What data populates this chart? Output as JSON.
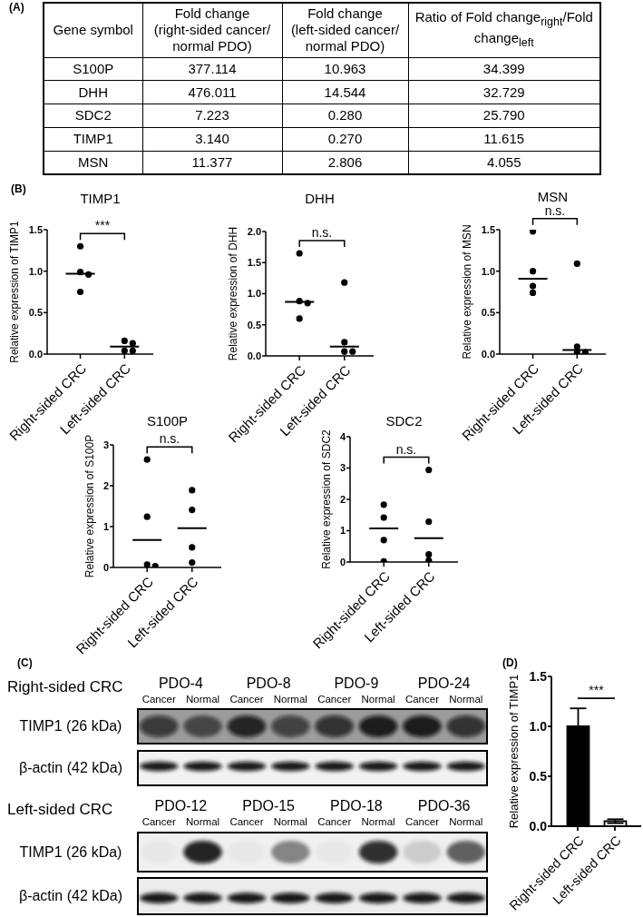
{
  "chart_data": [
    {
      "type": "other",
      "annotations": [
        "(A)"
      ],
      "ylabel": "Gene symbol",
      "categories": [
        "Fold change (right-sided cancer/ normal PDO)",
        "Fold change (left-sided cancer/ normal PDO)",
        "Ratio of Fold change$_{right}$/Fold change$_{left}$"
      ],
      "y_categories": [
        "S100P",
        "DHH",
        "SDC2",
        "TIMP1",
        "MSN"
      ],
      "cell_labels": [
        [
          "377.114",
          "10.963",
          "34.399"
        ],
        [
          "476.011",
          "14.544",
          "32.729"
        ],
        [
          "7.223",
          "0.280",
          "25.790"
        ],
        [
          "3.140",
          "0.270",
          "11.615"
        ],
        [
          "11.377",
          "2.806",
          "4.055"
        ]
      ]
    },
    {
      "type": "scatter",
      "title": "TIMP1",
      "ylabel": "Relative expression of TIMP1",
      "annotations": [
        "(B)",
        "***"
      ],
      "categories": [
        "Right-sided CRC",
        "Left-sided CRC"
      ],
      "ylim": [
        0,
        1.5
      ],
      "yticks": [
        {
          "value": 0,
          "label": "0.0"
        },
        0.5,
        {
          "value": 1,
          "label": "1.0"
        },
        1.5
      ],
      "marker": "circle",
      "series": [
        {
          "color": "#000000",
          "x": [
            "Right-sided CRC",
            "Right-sided CRC",
            "Right-sided CRC",
            "Right-sided CRC",
            "Left-sided CRC",
            "Left-sided CRC",
            "Left-sided CRC",
            "Left-sided CRC"
          ],
          "values": [
            1.3,
            0.99,
            0.96,
            0.75,
            0.16,
            0.13,
            0.04,
            0.04
          ]
        },
        {
          "type": "box",
          "color": "#000000",
          "boxes": [
            {
              "low": 0.97,
              "q1": 0.97,
              "median": 0.97,
              "q3": 0.97,
              "high": 0.97
            },
            {
              "low": 0.09,
              "q1": 0.09,
              "median": 0.09,
              "q3": 0.09,
              "high": 0.09
            }
          ]
        }
      ]
    },
    {
      "type": "scatter",
      "title": "DHH",
      "ylabel": "Relative expression of DHH",
      "annotations": [
        "n.s."
      ],
      "categories": [
        "Right-sided CRC",
        "Left-sided CRC"
      ],
      "ylim": [
        0,
        2
      ],
      "yticks": [
        {
          "value": 0,
          "label": "0.0"
        },
        0.5,
        {
          "value": 1,
          "label": "1.0"
        },
        1.5,
        {
          "value": 2,
          "label": "2.0"
        }
      ],
      "marker": "circle",
      "series": [
        {
          "color": "#000000",
          "x": [
            "Right-sided CRC",
            "Right-sided CRC",
            "Right-sided CRC",
            "Right-sided CRC",
            "Left-sided CRC",
            "Left-sided CRC",
            "Left-sided CRC",
            "Left-sided CRC"
          ],
          "values": [
            1.65,
            0.88,
            0.85,
            0.6,
            1.18,
            0.22,
            0.07,
            0.07
          ]
        },
        {
          "type": "box",
          "color": "#000000",
          "boxes": [
            {
              "low": 0.87,
              "q1": 0.87,
              "median": 0.87,
              "q3": 0.87,
              "high": 0.87
            },
            {
              "low": 0.15,
              "q1": 0.15,
              "median": 0.15,
              "q3": 0.15,
              "high": 0.15
            }
          ]
        }
      ]
    },
    {
      "type": "scatter",
      "title": "MSN",
      "ylabel": "Relative expression of MSN",
      "annotations": [
        "n.s."
      ],
      "categories": [
        "Right-sided CRC",
        "Left-sided CRC"
      ],
      "ylim": [
        0,
        1.5
      ],
      "yticks": [
        {
          "value": 0,
          "label": "0.0"
        },
        0.5,
        {
          "value": 1,
          "label": "1.0"
        },
        1.5
      ],
      "marker": "circle",
      "series": [
        {
          "color": "#000000",
          "x": [
            "Right-sided CRC",
            "Right-sided CRC",
            "Right-sided CRC",
            "Right-sided CRC",
            "Left-sided CRC",
            "Left-sided CRC",
            "Left-sided CRC",
            "Left-sided CRC"
          ],
          "values": [
            1.48,
            1.0,
            0.82,
            0.74,
            1.09,
            0.09,
            0.02,
            0.02
          ]
        },
        {
          "type": "box",
          "color": "#000000",
          "boxes": [
            {
              "low": 0.91,
              "q1": 0.91,
              "median": 0.91,
              "q3": 0.91,
              "high": 0.91
            },
            {
              "low": 0.05,
              "q1": 0.05,
              "median": 0.05,
              "q3": 0.05,
              "high": 0.05
            }
          ]
        }
      ]
    },
    {
      "type": "scatter",
      "title": "S100P",
      "ylabel": "Relative expression of S100P",
      "annotations": [
        "n.s."
      ],
      "categories": [
        "Right-sided CRC",
        "Left-sided CRC"
      ],
      "ylim": [
        0,
        3
      ],
      "yticks": [
        0,
        1,
        2,
        3
      ],
      "marker": "circle",
      "series": [
        {
          "color": "#000000",
          "x": [
            "Right-sided CRC",
            "Right-sided CRC",
            "Right-sided CRC",
            "Right-sided CRC",
            "Left-sided CRC",
            "Left-sided CRC",
            "Left-sided CRC",
            "Left-sided CRC"
          ],
          "values": [
            2.64,
            1.24,
            0.07,
            0.03,
            1.89,
            1.41,
            0.49,
            0.12
          ]
        },
        {
          "type": "box",
          "color": "#000000",
          "boxes": [
            {
              "low": 0.67,
              "q1": 0.67,
              "median": 0.67,
              "q3": 0.67,
              "high": 0.67
            },
            {
              "low": 0.96,
              "q1": 0.96,
              "median": 0.96,
              "q3": 0.96,
              "high": 0.96
            }
          ]
        }
      ]
    },
    {
      "type": "scatter",
      "title": "SDC2",
      "ylabel": "Relative expression of SDC2",
      "annotations": [
        "n.s."
      ],
      "categories": [
        "Right-sided CRC",
        "Left-sided CRC"
      ],
      "ylim": [
        0,
        4
      ],
      "yticks": [
        0,
        1,
        2,
        3,
        4
      ],
      "marker": "circle",
      "series": [
        {
          "color": "#000000",
          "x": [
            "Right-sided CRC",
            "Right-sided CRC",
            "Right-sided CRC",
            "Right-sided CRC",
            "Left-sided CRC",
            "Left-sided CRC",
            "Left-sided CRC",
            "Left-sided CRC"
          ],
          "values": [
            1.83,
            1.42,
            0.7,
            0.02,
            2.94,
            1.29,
            0.24,
            0.05
          ]
        },
        {
          "type": "box",
          "color": "#000000",
          "boxes": [
            {
              "low": 1.07,
              "q1": 1.07,
              "median": 1.07,
              "q3": 1.07,
              "high": 1.07
            },
            {
              "low": 0.76,
              "q1": 0.76,
              "median": 0.76,
              "q3": 0.76,
              "high": 0.76
            }
          ]
        }
      ]
    },
    {
      "type": "other",
      "annotations": [
        "(C)",
        "Right-sided CRC",
        "PDO-4",
        "Cancer",
        "Normal",
        "PDO-8",
        "Cancer",
        "Normal",
        "PDO-9",
        "Cancer",
        "Normal",
        "PDO-24",
        "Cancer",
        "Normal",
        "TIMP1 (26 kDa)",
        "β-actin (42 kDa)",
        "Left-sided CRC",
        "PDO-12",
        "Cancer",
        "Normal",
        "PDO-15",
        "Cancer",
        "Normal",
        "PDO-18",
        "Cancer",
        "Normal",
        "PDO-36",
        "Cancer",
        "Normal",
        "TIMP1 (26 kDa)",
        "β-actin (42 kDa)"
      ]
    },
    {
      "type": "bar",
      "ylabel": "Relative expression of TIMP1",
      "annotations": [
        "(D)",
        "***"
      ],
      "categories": [
        "Right-sided CRC",
        "Left-sided CRC"
      ],
      "values": [
        1.0,
        0.05
      ],
      "colors": [
        "#000000",
        "#ffffff"
      ],
      "errors": [
        0.18,
        0.02
      ],
      "ylim": [
        0,
        1.5
      ],
      "yticks": [
        {
          "value": 0,
          "label": "0.0"
        },
        0.5,
        {
          "value": 1,
          "label": "1.0"
        },
        1.5
      ]
    }
  ]
}
